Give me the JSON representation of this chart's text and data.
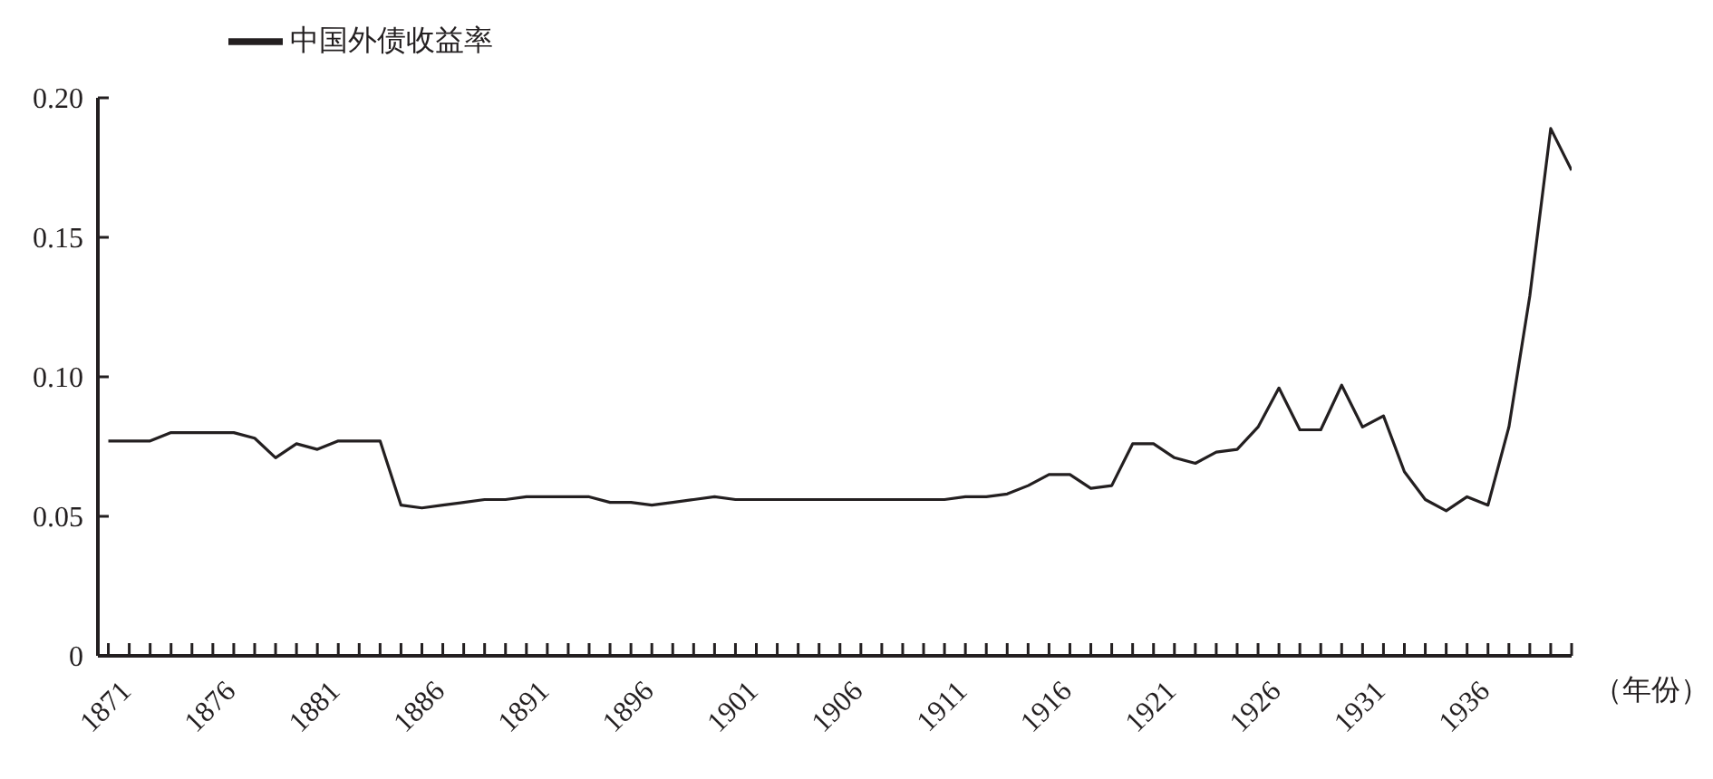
{
  "chart_data": {
    "type": "line",
    "xlabel": "（年份）",
    "legend": "top left",
    "grid": false,
    "marker": "none",
    "line_style": "solid",
    "x": [
      1871,
      1872,
      1873,
      1874,
      1875,
      1876,
      1877,
      1878,
      1879,
      1880,
      1881,
      1882,
      1883,
      1884,
      1885,
      1886,
      1887,
      1888,
      1889,
      1890,
      1891,
      1892,
      1893,
      1894,
      1895,
      1896,
      1897,
      1898,
      1899,
      1900,
      1901,
      1902,
      1903,
      1904,
      1905,
      1906,
      1907,
      1908,
      1909,
      1910,
      1911,
      1912,
      1913,
      1914,
      1915,
      1916,
      1917,
      1918,
      1919,
      1920,
      1921,
      1922,
      1923,
      1924,
      1925,
      1926,
      1927,
      1928,
      1929,
      1930,
      1931,
      1932,
      1933,
      1934,
      1935,
      1936,
      1937,
      1938,
      1939,
      1940,
      1941
    ],
    "series": [
      {
        "name": "中国外债收益率",
        "color": "#231f20",
        "values": [
          0.077,
          0.077,
          0.077,
          0.08,
          0.08,
          0.08,
          0.08,
          0.078,
          0.071,
          0.076,
          0.074,
          0.077,
          0.077,
          0.077,
          0.054,
          0.053,
          0.054,
          0.055,
          0.056,
          0.056,
          0.057,
          0.057,
          0.057,
          0.057,
          0.055,
          0.055,
          0.054,
          0.055,
          0.056,
          0.057,
          0.056,
          0.056,
          0.056,
          0.056,
          0.056,
          0.056,
          0.056,
          0.056,
          0.056,
          0.056,
          0.056,
          0.057,
          0.057,
          0.058,
          0.061,
          0.065,
          0.065,
          0.06,
          0.061,
          0.076,
          0.076,
          0.071,
          0.069,
          0.073,
          0.074,
          0.082,
          0.096,
          0.081,
          0.081,
          0.097,
          0.082,
          0.086,
          0.066,
          0.056,
          0.052,
          0.057,
          0.054,
          0.082,
          0.129,
          0.189,
          0.174
        ]
      }
    ],
    "xlim": [
      1870.5,
      1941
    ],
    "xticks": [
      {
        "value": 1871,
        "label": "1871"
      },
      {
        "value": 1872,
        "label": null
      },
      {
        "value": 1873,
        "label": null
      },
      {
        "value": 1874,
        "label": null
      },
      {
        "value": 1875,
        "label": null
      },
      {
        "value": 1876,
        "label": "1876"
      },
      {
        "value": 1877,
        "label": null
      },
      {
        "value": 1878,
        "label": null
      },
      {
        "value": 1879,
        "label": null
      },
      {
        "value": 1880,
        "label": null
      },
      {
        "value": 1881,
        "label": "1881"
      },
      {
        "value": 1882,
        "label": null
      },
      {
        "value": 1883,
        "label": null
      },
      {
        "value": 1884,
        "label": null
      },
      {
        "value": 1885,
        "label": null
      },
      {
        "value": 1886,
        "label": "1886"
      },
      {
        "value": 1887,
        "label": null
      },
      {
        "value": 1888,
        "label": null
      },
      {
        "value": 1889,
        "label": null
      },
      {
        "value": 1890,
        "label": null
      },
      {
        "value": 1891,
        "label": "1891"
      },
      {
        "value": 1892,
        "label": null
      },
      {
        "value": 1893,
        "label": null
      },
      {
        "value": 1894,
        "label": null
      },
      {
        "value": 1895,
        "label": null
      },
      {
        "value": 1896,
        "label": "1896"
      },
      {
        "value": 1897,
        "label": null
      },
      {
        "value": 1898,
        "label": null
      },
      {
        "value": 1899,
        "label": null
      },
      {
        "value": 1900,
        "label": null
      },
      {
        "value": 1901,
        "label": "1901"
      },
      {
        "value": 1902,
        "label": null
      },
      {
        "value": 1903,
        "label": null
      },
      {
        "value": 1904,
        "label": null
      },
      {
        "value": 1905,
        "label": null
      },
      {
        "value": 1906,
        "label": "1906"
      },
      {
        "value": 1907,
        "label": null
      },
      {
        "value": 1908,
        "label": null
      },
      {
        "value": 1909,
        "label": null
      },
      {
        "value": 1910,
        "label": null
      },
      {
        "value": 1911,
        "label": "1911"
      },
      {
        "value": 1912,
        "label": null
      },
      {
        "value": 1913,
        "label": null
      },
      {
        "value": 1914,
        "label": null
      },
      {
        "value": 1915,
        "label": null
      },
      {
        "value": 1916,
        "label": "1916"
      },
      {
        "value": 1917,
        "label": null
      },
      {
        "value": 1918,
        "label": null
      },
      {
        "value": 1919,
        "label": null
      },
      {
        "value": 1920,
        "label": null
      },
      {
        "value": 1921,
        "label": "1921"
      },
      {
        "value": 1922,
        "label": null
      },
      {
        "value": 1923,
        "label": null
      },
      {
        "value": 1924,
        "label": null
      },
      {
        "value": 1925,
        "label": null
      },
      {
        "value": 1926,
        "label": "1926"
      },
      {
        "value": 1927,
        "label": null
      },
      {
        "value": 1928,
        "label": null
      },
      {
        "value": 1929,
        "label": null
      },
      {
        "value": 1930,
        "label": null
      },
      {
        "value": 1931,
        "label": "1931"
      },
      {
        "value": 1932,
        "label": null
      },
      {
        "value": 1933,
        "label": null
      },
      {
        "value": 1934,
        "label": null
      },
      {
        "value": 1935,
        "label": null
      },
      {
        "value": 1936,
        "label": "1936"
      },
      {
        "value": 1937,
        "label": null
      },
      {
        "value": 1938,
        "label": null
      },
      {
        "value": 1939,
        "label": null
      },
      {
        "value": 1940,
        "label": null
      },
      {
        "value": 1941,
        "label": null
      }
    ],
    "ylim": [
      0,
      0.2
    ],
    "yticks": [
      {
        "value": 0,
        "label": "0"
      },
      {
        "value": 0.05,
        "label": "0.05"
      },
      {
        "value": 0.1,
        "label": "0.10"
      },
      {
        "value": 0.15,
        "label": "0.15"
      },
      {
        "value": 0.2,
        "label": "0.20"
      }
    ]
  }
}
